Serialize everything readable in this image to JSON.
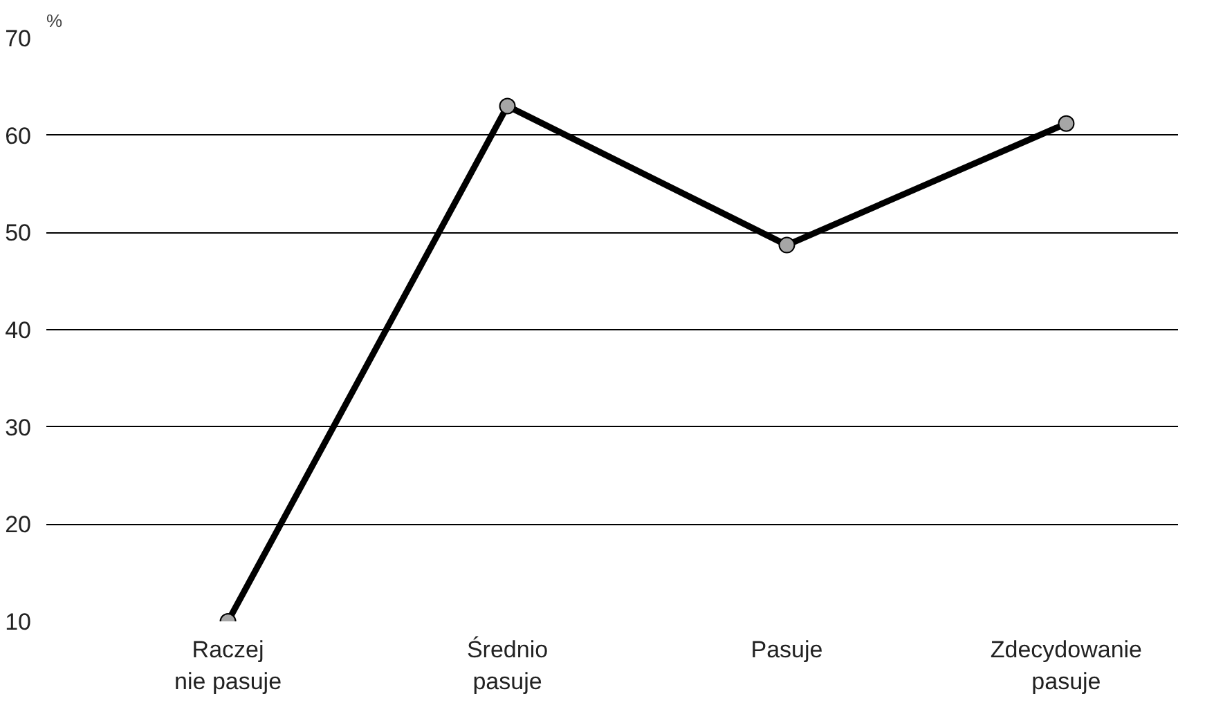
{
  "chart_data": {
    "type": "line",
    "ylabel": "%",
    "categories": [
      "Raczej\nnie pasuje",
      "Średnio\npasuje",
      "Pasuje",
      "Zdecydowanie\npasuje"
    ],
    "series": [
      {
        "color": "#000000",
        "values": [
          10,
          63,
          48.7,
          61.2
        ]
      }
    ],
    "ylim": [
      10,
      70
    ],
    "yticks": [
      10,
      20,
      30,
      40,
      50,
      60,
      70
    ],
    "grid": "y",
    "marker": "circle",
    "line_style": "solid"
  }
}
